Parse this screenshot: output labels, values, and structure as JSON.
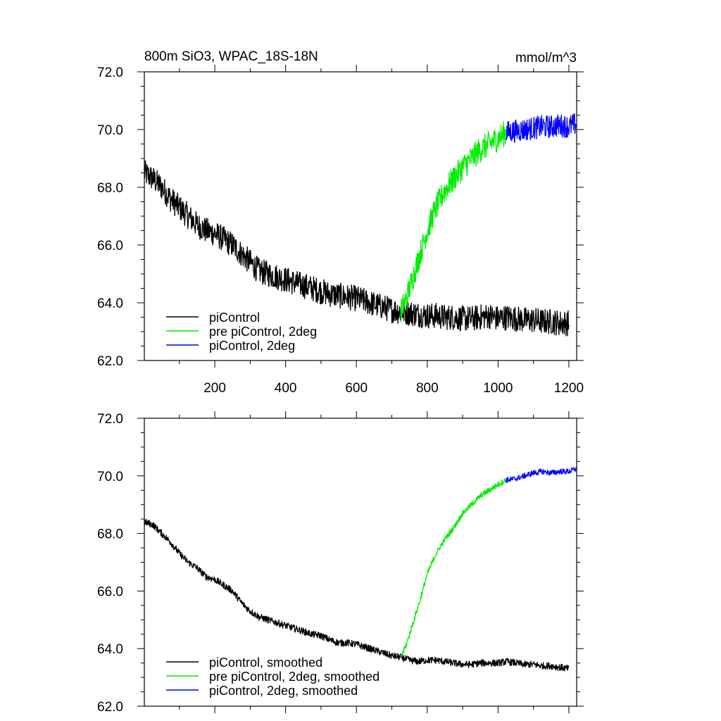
{
  "title_left": "800m SiO3, WPAC_18S-18N",
  "title_right": "mmol/m^3",
  "chart_data": [
    {
      "type": "line",
      "panel": "top",
      "xlim": [
        1,
        1222
      ],
      "ylim": [
        62.0,
        72.0
      ],
      "x_ticks": [
        200,
        400,
        600,
        800,
        1000,
        1200
      ],
      "x_tick_labels": [
        "200",
        "400",
        "600",
        "800",
        "1000",
        "1200"
      ],
      "y_ticks": [
        62.0,
        64.0,
        66.0,
        68.0,
        70.0,
        72.0
      ],
      "y_tick_labels": [
        "62.0",
        "64.0",
        "66.0",
        "68.0",
        "70.0",
        "72.0"
      ],
      "grid": false,
      "legend_position": "bottom-left",
      "series": [
        {
          "name": "piControl",
          "color": "#000000",
          "noise": 0.45,
          "x": [
            1,
            25,
            50,
            75,
            100,
            125,
            150,
            175,
            200,
            225,
            250,
            275,
            300,
            325,
            350,
            375,
            400,
            425,
            450,
            475,
            500,
            525,
            550,
            575,
            600,
            625,
            650,
            675,
            700,
            725,
            750,
            775,
            800,
            825,
            850,
            875,
            900,
            925,
            950,
            975,
            1000,
            1025,
            1050,
            1075,
            1100,
            1125,
            1150,
            1175,
            1200
          ],
          "y": [
            68.5,
            68.3,
            68.0,
            67.6,
            67.3,
            67.0,
            66.7,
            66.5,
            66.4,
            66.2,
            66.0,
            65.7,
            65.4,
            65.1,
            65.0,
            64.9,
            64.8,
            64.7,
            64.6,
            64.5,
            64.4,
            64.3,
            64.25,
            64.2,
            64.15,
            64.05,
            63.95,
            63.85,
            63.75,
            63.7,
            63.65,
            63.6,
            63.55,
            63.55,
            63.5,
            63.5,
            63.45,
            63.45,
            63.5,
            63.55,
            63.45,
            63.5,
            63.45,
            63.4,
            63.4,
            63.35,
            63.35,
            63.3,
            63.3
          ]
        },
        {
          "name": "pre piControl, 2deg",
          "color": "#00ee00",
          "noise": 0.45,
          "x": [
            725,
            740,
            760,
            780,
            800,
            825,
            850,
            875,
            900,
            925,
            950,
            975,
            1000,
            1022
          ],
          "y": [
            63.7,
            64.1,
            64.9,
            65.7,
            66.5,
            67.3,
            67.9,
            68.3,
            68.7,
            69.0,
            69.3,
            69.5,
            69.7,
            69.9
          ]
        },
        {
          "name": "piControl, 2deg",
          "color": "#0000ff",
          "noise": 0.4,
          "x": [
            1022,
            1050,
            1075,
            1100,
            1125,
            1150,
            1175,
            1200,
            1222
          ],
          "y": [
            69.9,
            69.95,
            70.0,
            70.05,
            70.1,
            70.1,
            70.15,
            70.1,
            70.2
          ]
        }
      ]
    },
    {
      "type": "line",
      "panel": "bottom",
      "xlim": [
        1,
        1222
      ],
      "ylim": [
        62.0,
        72.0
      ],
      "y_ticks": [
        62.0,
        64.0,
        66.0,
        68.0,
        70.0,
        72.0
      ],
      "y_tick_labels": [
        "62.0",
        "64.0",
        "66.0",
        "68.0",
        "70.0",
        "72.0"
      ],
      "grid": false,
      "legend_position": "bottom-left",
      "series": [
        {
          "name": "piControl, smoothed",
          "color": "#000000",
          "noise": 0.12,
          "x": [
            1,
            25,
            50,
            75,
            100,
            125,
            150,
            175,
            200,
            225,
            250,
            275,
            300,
            325,
            350,
            375,
            400,
            425,
            450,
            475,
            500,
            525,
            550,
            575,
            600,
            625,
            650,
            675,
            700,
            725,
            750,
            775,
            800,
            825,
            850,
            875,
            900,
            925,
            950,
            975,
            1000,
            1025,
            1050,
            1075,
            1100,
            1125,
            1150,
            1175,
            1200
          ],
          "y": [
            68.4,
            68.3,
            68.0,
            67.7,
            67.3,
            67.0,
            66.8,
            66.5,
            66.4,
            66.2,
            66.0,
            65.6,
            65.3,
            65.1,
            65.0,
            64.9,
            64.8,
            64.7,
            64.6,
            64.5,
            64.45,
            64.3,
            64.2,
            64.2,
            64.15,
            64.05,
            63.95,
            63.85,
            63.75,
            63.7,
            63.6,
            63.55,
            63.6,
            63.6,
            63.55,
            63.5,
            63.45,
            63.45,
            63.5,
            63.5,
            63.5,
            63.55,
            63.5,
            63.45,
            63.45,
            63.4,
            63.4,
            63.35,
            63.3
          ]
        },
        {
          "name": "pre piControl, 2deg, smoothed",
          "color": "#00ee00",
          "noise": 0.1,
          "x": [
            725,
            740,
            760,
            780,
            800,
            825,
            850,
            875,
            900,
            925,
            950,
            975,
            1000,
            1022
          ],
          "y": [
            63.7,
            64.1,
            64.9,
            65.7,
            66.6,
            67.3,
            67.8,
            68.2,
            68.7,
            69.0,
            69.3,
            69.5,
            69.7,
            69.85
          ]
        },
        {
          "name": "piControl, 2deg, smoothed",
          "color": "#0000ff",
          "noise": 0.1,
          "x": [
            1022,
            1050,
            1075,
            1100,
            1125,
            1150,
            1175,
            1200,
            1222
          ],
          "y": [
            69.85,
            69.9,
            70.0,
            70.1,
            70.15,
            70.1,
            70.15,
            70.15,
            70.25
          ]
        }
      ]
    }
  ]
}
